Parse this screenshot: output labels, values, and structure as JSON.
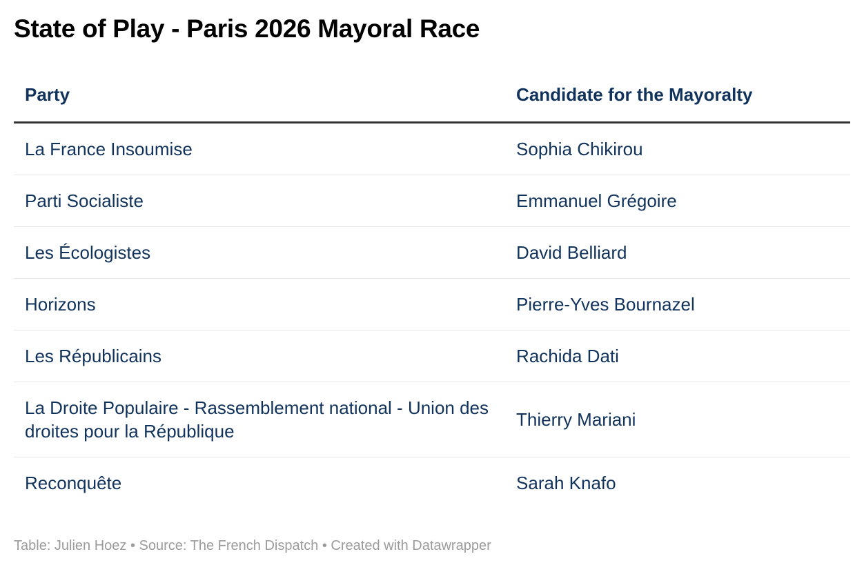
{
  "chart_data": {
    "type": "table",
    "title": "State of Play - Paris 2026 Mayoral Race",
    "columns": [
      "Party",
      "Candidate for the Mayoralty"
    ],
    "rows": [
      [
        "La France Insoumise",
        "Sophia Chikirou"
      ],
      [
        "Parti Socialiste",
        "Emmanuel Grégoire"
      ],
      [
        "Les Écologistes",
        "David Belliard"
      ],
      [
        "Horizons",
        "Pierre-Yves Bournazel"
      ],
      [
        "Les Républicains",
        "Rachida Dati"
      ],
      [
        "La Droite Populaire - Rassemblement national - Union des droites pour la République",
        "Thierry Mariani"
      ],
      [
        "Reconquête",
        "Sarah Knafo"
      ]
    ],
    "footer": "Table: Julien Hoez • Source: The French Dispatch • Created with Datawrapper",
    "legend_position": "none",
    "grid": "horizontal-row-dividers"
  },
  "colors": {
    "title_text": "#000000",
    "table_text": "#11335b",
    "header_border": "#333333",
    "row_divider": "#e6e6e6",
    "footer_text": "#9b9b9b",
    "background": "#ffffff"
  }
}
